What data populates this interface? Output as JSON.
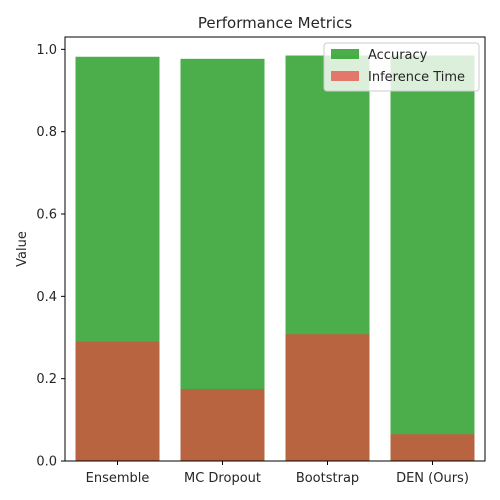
{
  "chart_data": {
    "type": "bar",
    "title": "Performance Metrics",
    "xlabel": "",
    "ylabel": "Value",
    "ylim": [
      0,
      1.03
    ],
    "yticks": [
      0.0,
      0.2,
      0.4,
      0.6,
      0.8,
      1.0
    ],
    "ytick_labels": [
      "0.0",
      "0.2",
      "0.4",
      "0.6",
      "0.8",
      "1.0"
    ],
    "categories": [
      "Ensemble",
      "MC Dropout",
      "Bootstrap",
      "DEN (Ours)"
    ],
    "series": [
      {
        "name": "Accuracy",
        "color": "#2ca02c",
        "alpha": 0.85,
        "values": [
          0.982,
          0.977,
          0.985,
          0.985
        ]
      },
      {
        "name": "Inference Time",
        "color": "#e8453c",
        "alpha": 0.7,
        "values": [
          0.29,
          0.175,
          0.308,
          0.065
        ]
      }
    ],
    "overlap": true,
    "legend_position": "upper right",
    "grid": false
  }
}
